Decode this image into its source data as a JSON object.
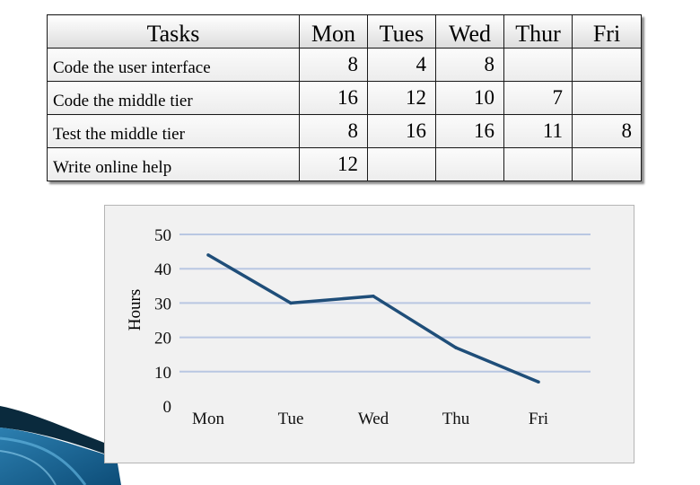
{
  "table": {
    "headers": [
      "Tasks",
      "Mon",
      "Tues",
      "Wed",
      "Thur",
      "Fri"
    ],
    "rows": [
      {
        "task": "Code the user interface",
        "cells": [
          "8",
          "4",
          "8",
          "",
          ""
        ]
      },
      {
        "task": "Code the middle tier",
        "cells": [
          "16",
          "12",
          "10",
          "7",
          ""
        ]
      },
      {
        "task": "Test the middle tier",
        "cells": [
          "8",
          "16",
          "16",
          "11",
          "8"
        ]
      },
      {
        "task": "Write online help",
        "cells": [
          "12",
          "",
          "",
          "",
          ""
        ]
      }
    ]
  },
  "chart_data": {
    "type": "line",
    "categories": [
      "Mon",
      "Tue",
      "Wed",
      "Thu",
      "Fri"
    ],
    "series": [
      {
        "values": [
          44,
          30,
          32,
          17,
          7
        ],
        "color": "#1f4e79"
      }
    ],
    "ylabel": "Hours",
    "xlabel": "",
    "ylim": [
      0,
      50
    ],
    "yticks": [
      "0",
      "10",
      "20",
      "30",
      "40",
      "50"
    ],
    "grid": true,
    "gridline_color": "#b9c7e2"
  }
}
